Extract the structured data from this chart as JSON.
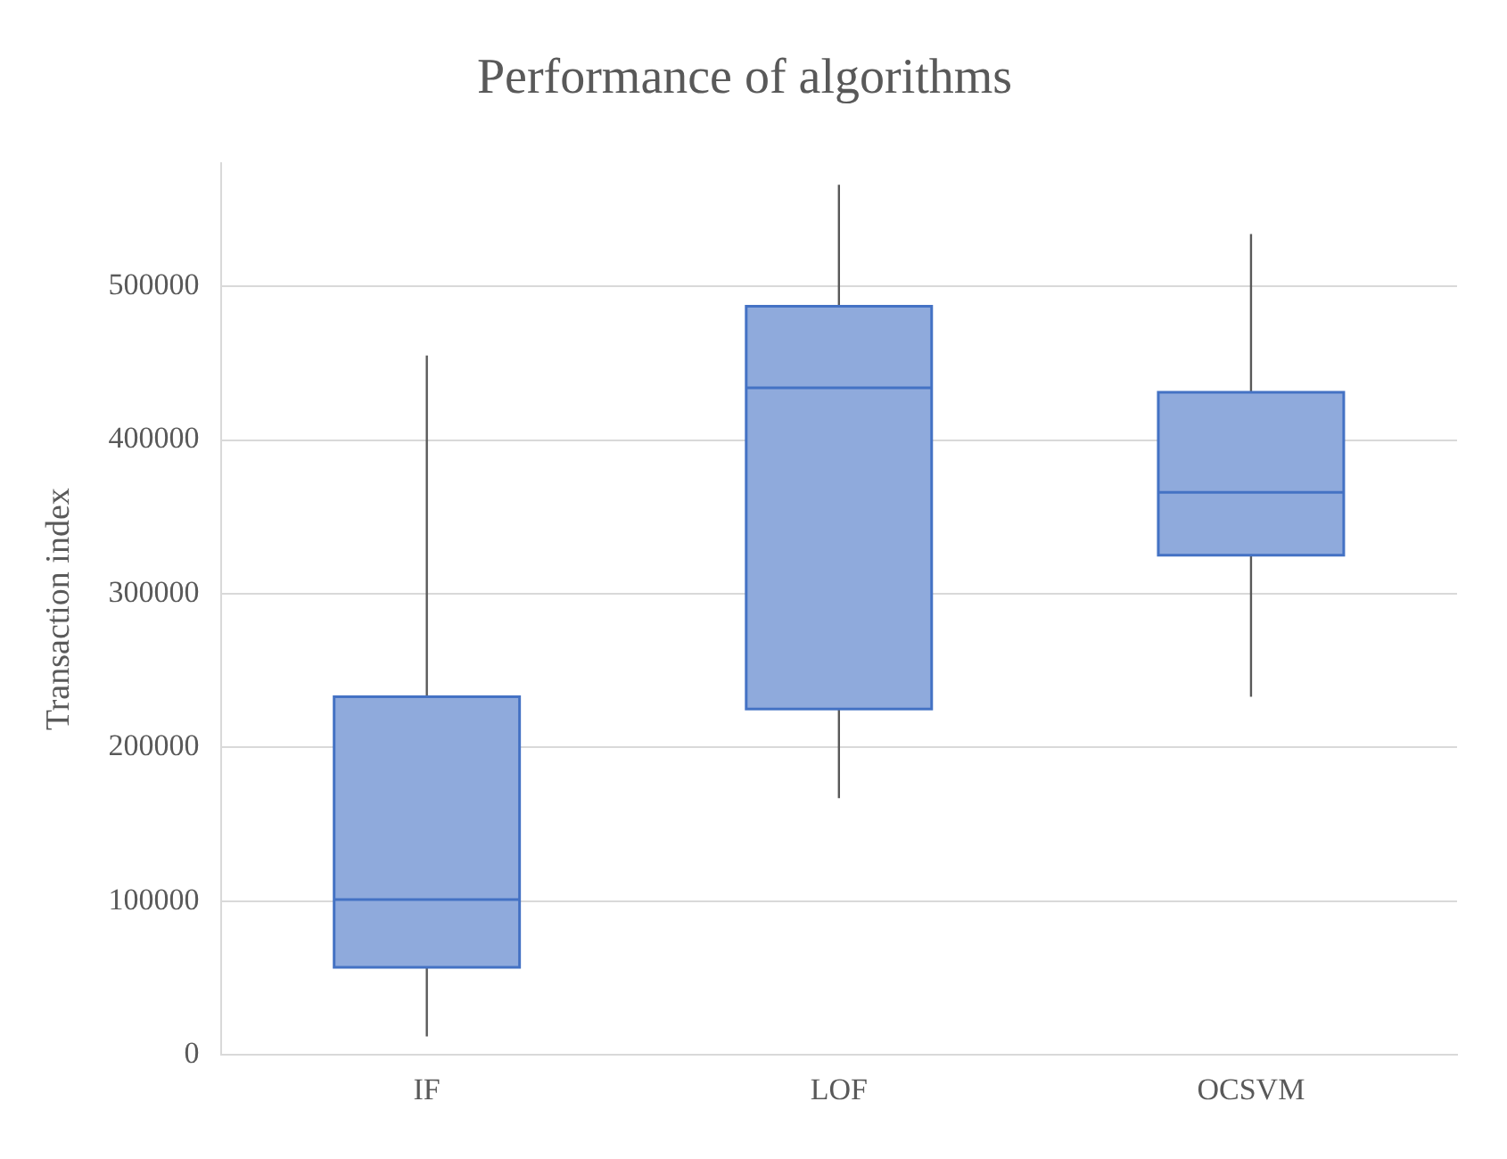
{
  "chart_data": {
    "type": "box",
    "title": "Performance of algorithms",
    "ylabel": "Transaction index",
    "categories": [
      "IF",
      "LOF",
      "OCSVM"
    ],
    "boxes": [
      {
        "low": 12000,
        "q1": 57000,
        "median": 101000,
        "q3": 233000,
        "high": 455000
      },
      {
        "low": 167000,
        "q1": 225000,
        "median": 434000,
        "q3": 487000,
        "high": 566000
      },
      {
        "low": 233000,
        "q1": 325000,
        "median": 366000,
        "q3": 431000,
        "high": 534000
      }
    ],
    "color": "#8faadc",
    "ylim": [
      0,
      580000
    ],
    "yticks": [
      0,
      100000,
      200000,
      300000,
      400000,
      500000
    ],
    "grid": "y",
    "legend": false
  }
}
